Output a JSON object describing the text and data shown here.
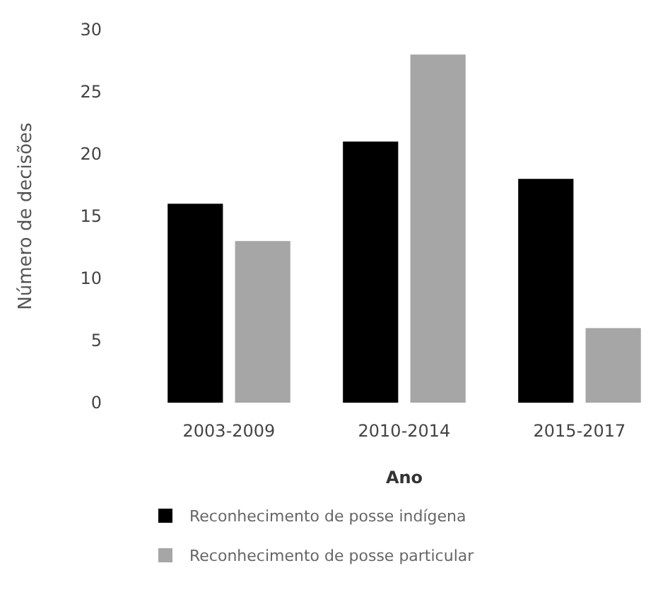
{
  "chart_data": {
    "type": "bar",
    "xlabel": "Ano",
    "ylabel": "Número de decisões",
    "categories": [
      "2003-2009",
      "2010-2014",
      "2015-2017"
    ],
    "series": [
      {
        "name": "Reconhecimento de posse indígena",
        "color": "#000000",
        "values": [
          16,
          21,
          18
        ]
      },
      {
        "name": "Reconhecimento de posse particular",
        "color": "#a6a6a6",
        "values": [
          13,
          28,
          6
        ]
      }
    ],
    "ylim": [
      0,
      30
    ],
    "yticks": [
      0,
      5,
      10,
      15,
      20,
      25,
      30
    ],
    "grid": false,
    "legend": "bottom"
  }
}
